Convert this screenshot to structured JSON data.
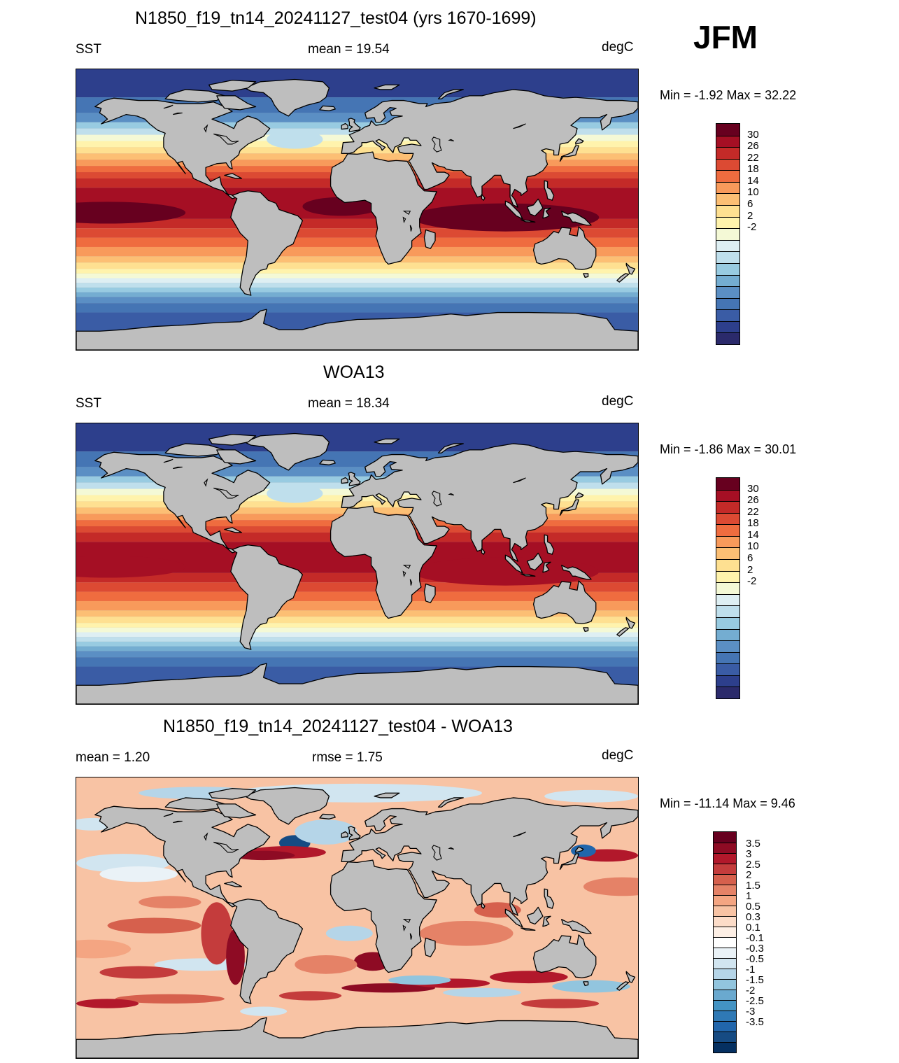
{
  "season": "JFM",
  "panels": [
    {
      "id": "model",
      "title": "N1850_f19_tn14_20241127_test04 (yrs 1670-1699)",
      "left_label": "SST",
      "center_label": "mean =  19.54",
      "units": "degC",
      "minmax": "Min =  -1.92 Max =  32.22",
      "variant": "model"
    },
    {
      "id": "obs",
      "title": "WOA13",
      "left_label": "SST",
      "center_label": "mean =  18.34",
      "units": "degC",
      "minmax": "Min =  -1.86 Max =  30.01",
      "variant": "obs"
    },
    {
      "id": "diff",
      "title": "N1850_f19_tn14_20241127_test04 - WOA13",
      "left_label": "mean =   1.20",
      "center_label": "rmse =   1.75",
      "units": "degC",
      "minmax": "Min = -11.14 Max =   9.46",
      "variant": "diff"
    }
  ],
  "colorbars": {
    "sst": {
      "colors": [
        "#67001f",
        "#a50f24",
        "#c42a28",
        "#dc4a33",
        "#ef6c3f",
        "#f89a5b",
        "#fcbf74",
        "#fee091",
        "#fff3ac",
        "#f4f9d6",
        "#deeff3",
        "#bfdfec",
        "#98cbe1",
        "#74add1",
        "#5b8fc4",
        "#4575b4",
        "#3a5ca5",
        "#2d3f8c",
        "#2b2a6b"
      ],
      "ticks": [
        "30",
        "26",
        "22",
        "18",
        "14",
        "10",
        "6",
        "2",
        "-2"
      ]
    },
    "diff": {
      "colors": [
        "#67001f",
        "#8e0b24",
        "#b2182b",
        "#c43c3c",
        "#d6604d",
        "#e58267",
        "#f4a582",
        "#f8c3a4",
        "#fcdcc8",
        "#fdefe5",
        "#ffffff",
        "#eaf2f7",
        "#d1e5f0",
        "#b5d5e8",
        "#92c5de",
        "#6aa9cf",
        "#4393c3",
        "#2f79b5",
        "#2166ac",
        "#164b83",
        "#053061"
      ],
      "ticks": [
        "3.5",
        "3",
        "2.5",
        "2",
        "1.5",
        "1",
        "0.5",
        "0.3",
        "0.1",
        "-0.1",
        "-0.3",
        "-0.5",
        "-1",
        "-1.5",
        "-2",
        "-2.5",
        "-3",
        "-3.5"
      ]
    }
  }
}
